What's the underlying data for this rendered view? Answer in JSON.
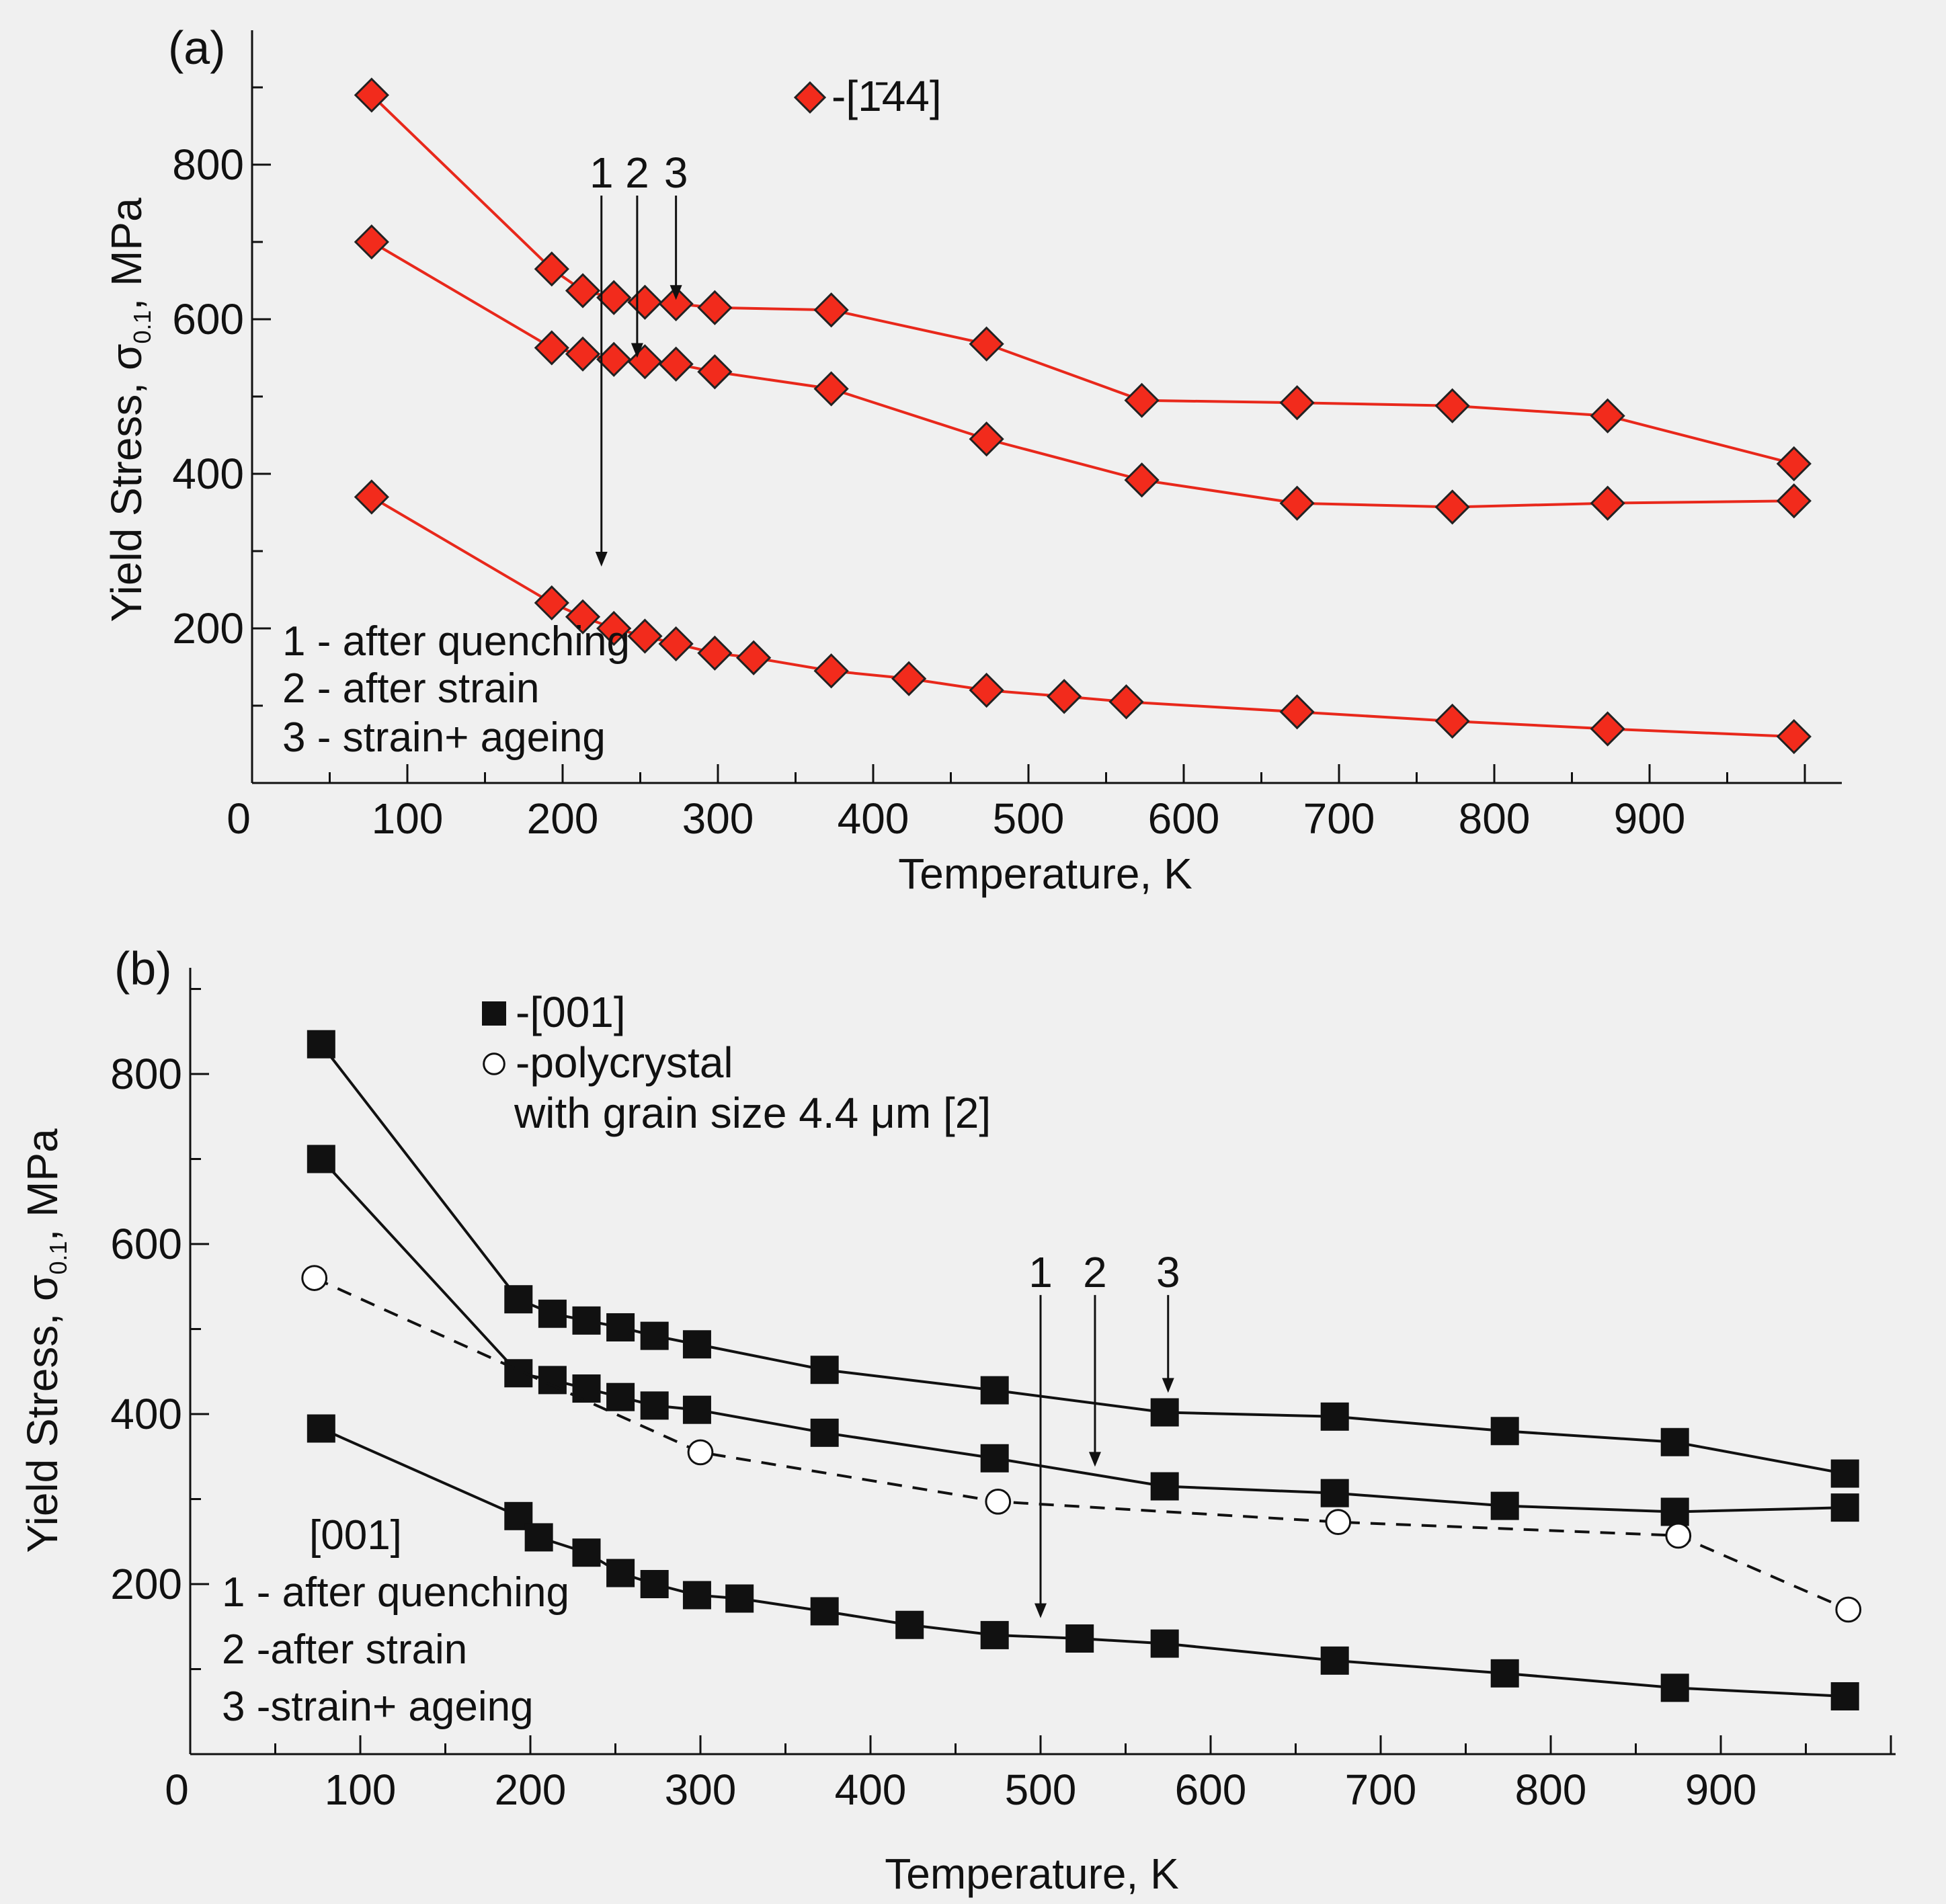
{
  "colors": {
    "series_a": "#e8281b",
    "series_a_fill": "#f22b1c",
    "series_b": "#111111",
    "background": "#f0f0f0"
  },
  "chart_data": [
    {
      "type": "line",
      "panel_label": "(a)",
      "xlabel": "Temperature, K",
      "ylabel_prefix": "Yield Stress, σ",
      "ylabel_sub": "0.1",
      "ylabel_suffix": ", MPa",
      "xlim": [
        0,
        1000
      ],
      "ylim": [
        0,
        950
      ],
      "x_ticks": [
        0,
        100,
        200,
        300,
        400,
        500,
        600,
        700,
        800,
        900
      ],
      "y_ticks": [
        200,
        400,
        600,
        800
      ],
      "legend": [
        {
          "marker": "diamond",
          "label": "-[1̄44]"
        }
      ],
      "series": [
        {
          "name": "3 - strain+ ageing",
          "marker": "diamond",
          "style": "solid",
          "x": [
            77,
            193,
            213,
            233,
            253,
            273,
            298,
            373,
            473,
            573,
            673,
            773,
            873,
            993
          ],
          "y": [
            890,
            665,
            637,
            628,
            622,
            620,
            615,
            612,
            568,
            495,
            492,
            488,
            475,
            413
          ]
        },
        {
          "name": "2 - after strain",
          "marker": "diamond",
          "style": "solid",
          "x": [
            77,
            193,
            213,
            233,
            253,
            273,
            298,
            373,
            473,
            573,
            673,
            773,
            873,
            993
          ],
          "y": [
            700,
            563,
            555,
            548,
            545,
            542,
            532,
            510,
            445,
            392,
            362,
            357,
            362,
            365
          ]
        },
        {
          "name": "1 - after quenching",
          "marker": "diamond",
          "style": "solid",
          "x": [
            77,
            193,
            213,
            233,
            253,
            273,
            298,
            323,
            373,
            423,
            473,
            523,
            563,
            673,
            773,
            873,
            993
          ],
          "y": [
            370,
            233,
            215,
            200,
            190,
            180,
            168,
            162,
            145,
            135,
            120,
            112,
            105,
            92,
            80,
            70,
            60
          ]
        }
      ],
      "arrows": [
        {
          "label": "1",
          "x": 225,
          "y_start": 760,
          "y_end": 280
        },
        {
          "label": "2",
          "x": 248,
          "y_start": 760,
          "y_end": 550
        },
        {
          "label": "3",
          "x": 273,
          "y_start": 760,
          "y_end": 625
        }
      ],
      "notes": [
        "1 - after quenching",
        "2 - after strain",
        "3 - strain+ ageing"
      ]
    },
    {
      "type": "line",
      "panel_label": "(b)",
      "xlabel": "Temperature, K",
      "ylabel_prefix": "Yield Stress, σ",
      "ylabel_sub": "0.1",
      "ylabel_suffix": ", MPa",
      "xlim": [
        0,
        1000
      ],
      "ylim": [
        0,
        900
      ],
      "x_ticks": [
        0,
        100,
        200,
        300,
        400,
        500,
        600,
        700,
        800,
        900
      ],
      "y_ticks": [
        200,
        400,
        600,
        800
      ],
      "legend": [
        {
          "marker": "square",
          "label": "-[001]"
        },
        {
          "marker": "circle",
          "label": "-polycrystal"
        },
        {
          "marker": "none",
          "label": "with grain size 4.4 μm [2]"
        }
      ],
      "series": [
        {
          "name": "3 -strain+ ageing",
          "marker": "square",
          "style": "solid",
          "x": [
            77,
            193,
            213,
            233,
            253,
            273,
            298,
            373,
            473,
            573,
            673,
            773,
            873,
            973
          ],
          "y": [
            835,
            535,
            518,
            510,
            502,
            492,
            482,
            452,
            428,
            402,
            397,
            380,
            367,
            330
          ]
        },
        {
          "name": "2 -after strain",
          "marker": "square",
          "style": "solid",
          "x": [
            77,
            193,
            213,
            233,
            253,
            273,
            298,
            373,
            473,
            573,
            673,
            773,
            873,
            973
          ],
          "y": [
            700,
            448,
            440,
            430,
            420,
            410,
            405,
            378,
            348,
            315,
            307,
            292,
            285,
            290
          ]
        },
        {
          "name": "1 - after quenching",
          "marker": "square",
          "style": "solid",
          "x": [
            77,
            193,
            205,
            233,
            253,
            273,
            298,
            323,
            373,
            423,
            473,
            523,
            573,
            673,
            773,
            873,
            973
          ],
          "y": [
            383,
            280,
            255,
            237,
            213,
            200,
            187,
            183,
            168,
            152,
            140,
            136,
            130,
            110,
            95,
            78,
            68
          ]
        },
        {
          "name": "polycrystal",
          "marker": "circle",
          "style": "dashed",
          "x": [
            73,
            300,
            475,
            675,
            875,
            975
          ],
          "y": [
            560,
            355,
            297,
            273,
            257,
            170
          ]
        }
      ],
      "arrows": [
        {
          "label": "1",
          "x": 500,
          "y_start": 540,
          "y_end": 160
        },
        {
          "label": "2",
          "x": 532,
          "y_start": 540,
          "y_end": 338
        },
        {
          "label": "3",
          "x": 575,
          "y_start": 540,
          "y_end": 425
        }
      ],
      "notes_header": "[001]",
      "notes": [
        "1 - after quenching",
        "2 -after strain",
        "3 -strain+ ageing"
      ]
    }
  ]
}
